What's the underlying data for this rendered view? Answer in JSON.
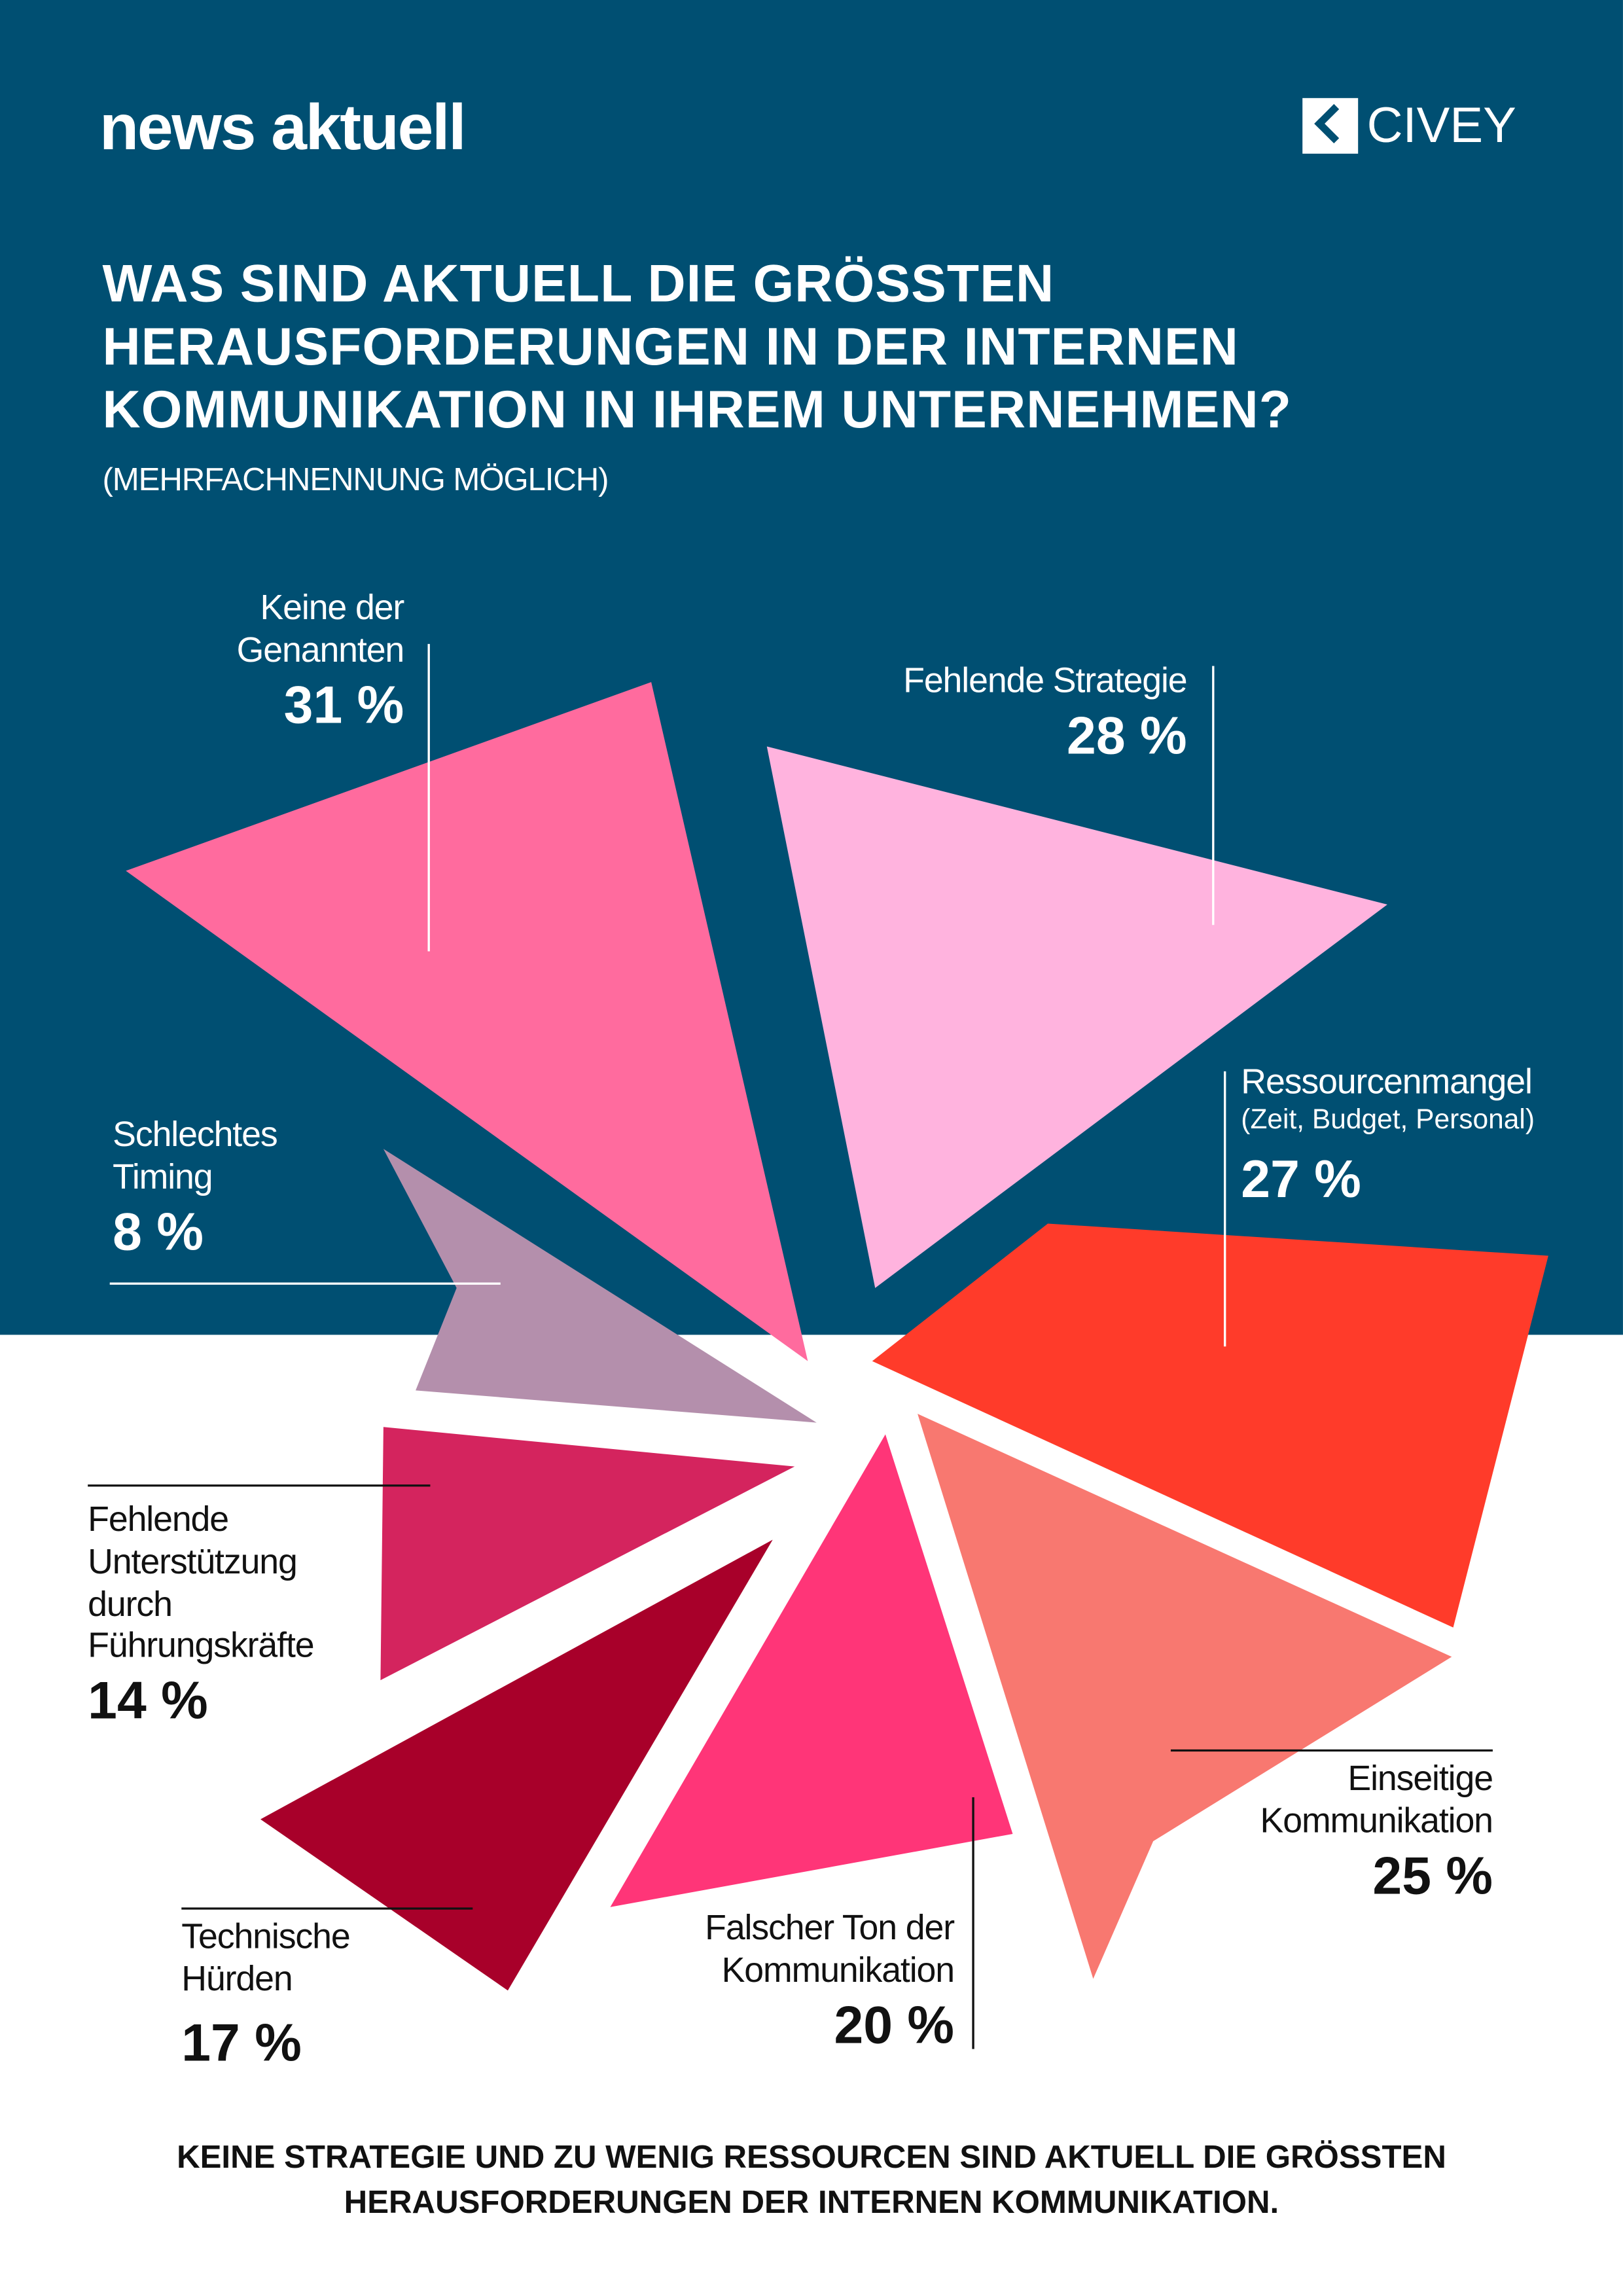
{
  "header": {
    "brand": "news aktuell",
    "partner_logo": "CIVEY",
    "title": "WAS SIND AKTUELL DIE GRÖSSTEN HERAUSFORDERUNGEN IN DER INTERNEN KOMMUNIKATION IN IHREM UNTERNEHMEN?",
    "subtitle": "(MEHRFACHNENNUNG MÖGLICH)"
  },
  "footer": {
    "line1": "KEINE STRATEGIE UND ZU WENIG RESSOURCEN SIND AKTUELL DIE GRÖSSTEN",
    "line2": "HERAUSFORDERUNGEN DER INTERNEN KOMMUNIKATION."
  },
  "colors": {
    "background": "#004f72"
  },
  "chart_data": {
    "type": "pie",
    "title": "WAS SIND AKTUELL DIE GRÖSSTEN HERAUSFORDERUNGEN IN DER INTERNEN KOMMUNIKATION IN IHREM UNTERNEHMEN?",
    "categories": [
      {
        "label": "Keine der Genannten",
        "pct": "31 %",
        "value": 31,
        "color": "#ff6b9e"
      },
      {
        "label": "Fehlende Strategie",
        "pct": "28 %",
        "value": 28,
        "color": "#ffb3de"
      },
      {
        "label": "Ressourcenmangel",
        "note": "(Zeit, Budget, Personal)",
        "pct": "27 %",
        "value": 27,
        "color": "#ff3b2a"
      },
      {
        "label": "Einseitige Kommunikation",
        "pct": "25 %",
        "value": 25,
        "color": "#f87870"
      },
      {
        "label": "Falscher Ton der Kommunikation",
        "pct": "20 %",
        "value": 20,
        "color": "#ff3578"
      },
      {
        "label": "Technische Hürden",
        "pct": "17 %",
        "value": 17,
        "color": "#a8002a"
      },
      {
        "label": "Fehlende Unterstützung durch Führungskräfte",
        "pct": "14 %",
        "value": 14,
        "color": "#d4245e"
      },
      {
        "label": "Schlechtes Timing",
        "pct": "8 %",
        "value": 8,
        "color": "#b48fac"
      }
    ]
  }
}
